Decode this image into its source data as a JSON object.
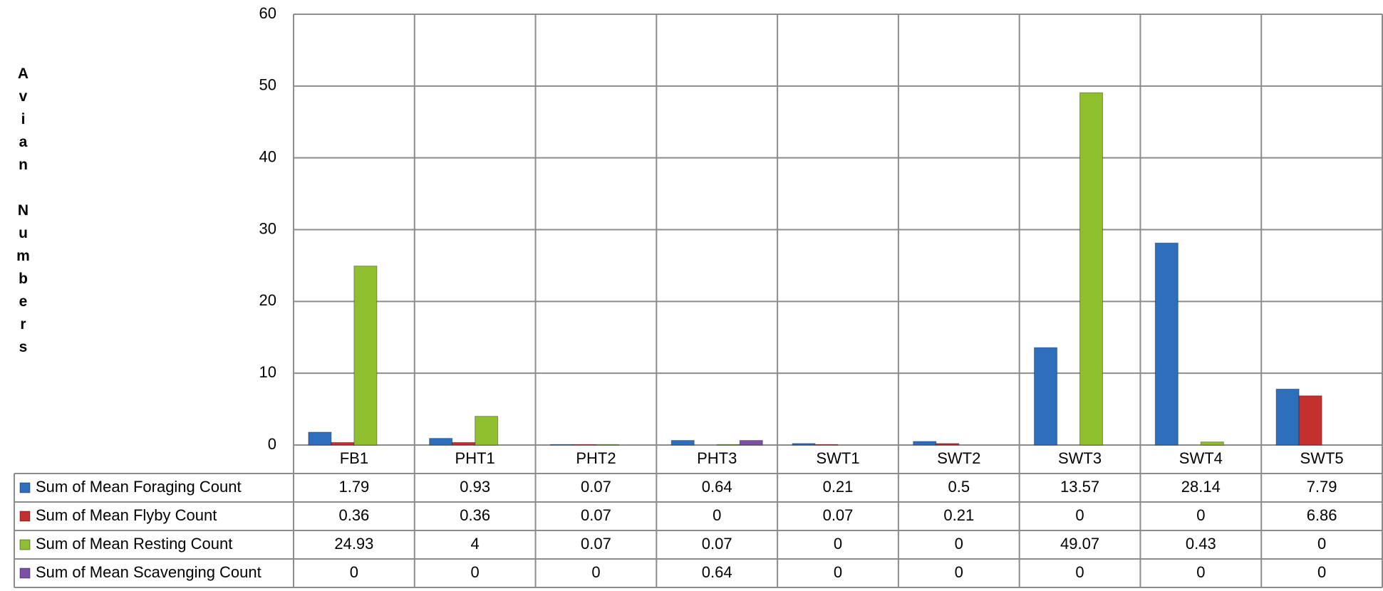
{
  "chart_data": {
    "type": "bar",
    "y_label": "Avian Numbers",
    "categories": [
      "FB1",
      "PHT1",
      "PHT2",
      "PHT3",
      "SWT1",
      "SWT2",
      "SWT3",
      "SWT4",
      "SWT5"
    ],
    "series": [
      {
        "name": "Sum of Mean Foraging Count",
        "color": "#2e6fbd",
        "values": [
          1.79,
          0.93,
          0.07,
          0.64,
          0.21,
          0.5,
          13.57,
          28.14,
          7.79
        ]
      },
      {
        "name": "Sum of Mean Flyby Count",
        "color": "#c3302e",
        "values": [
          0.36,
          0.36,
          0.07,
          0,
          0.07,
          0.21,
          0,
          0,
          6.86
        ]
      },
      {
        "name": "Sum of Mean Resting Count",
        "color": "#8fbe2f",
        "values": [
          24.93,
          4,
          0.07,
          0.07,
          0,
          0,
          49.07,
          0.43,
          0
        ]
      },
      {
        "name": "Sum of Mean Scavenging Count",
        "color": "#7d4fa8",
        "values": [
          0,
          0,
          0,
          0.64,
          0,
          0,
          0,
          0,
          0
        ]
      }
    ],
    "ylim": [
      0,
      60
    ],
    "yticks": [
      0,
      10,
      20,
      30,
      40,
      50,
      60
    ],
    "grid": true,
    "data_table": true
  }
}
